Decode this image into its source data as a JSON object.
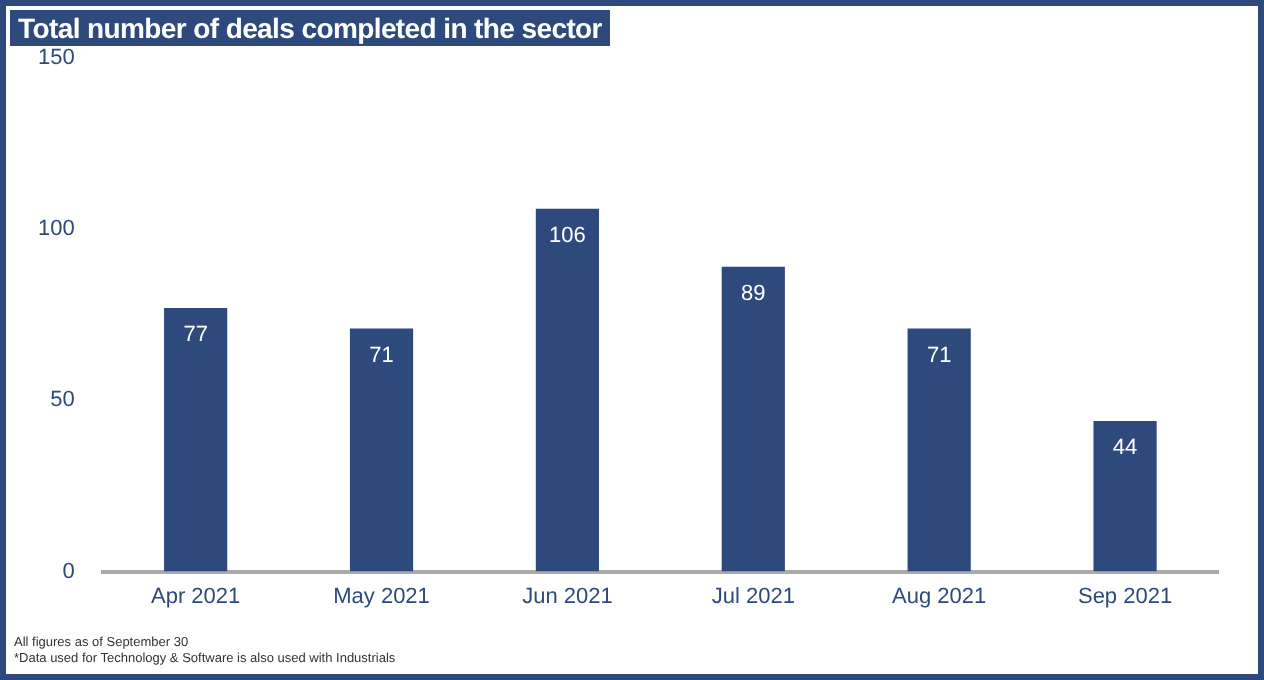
{
  "chart_data": {
    "type": "bar",
    "title": "Total number of deals completed in the sector",
    "categories": [
      "Apr 2021",
      "May 2021",
      "Jun 2021",
      "Jul 2021",
      "Aug 2021",
      "Sep 2021"
    ],
    "values": [
      77,
      71,
      106,
      89,
      71,
      44
    ],
    "color": "#2e4a7d",
    "ylim": [
      0,
      150
    ],
    "yticks": [
      0,
      50,
      100,
      150
    ],
    "grid": false,
    "legend": false,
    "data_labels": true,
    "annotations": [
      "All figures as of September 30",
      "*Data used for Technology & Software is also used with Industrials"
    ]
  }
}
